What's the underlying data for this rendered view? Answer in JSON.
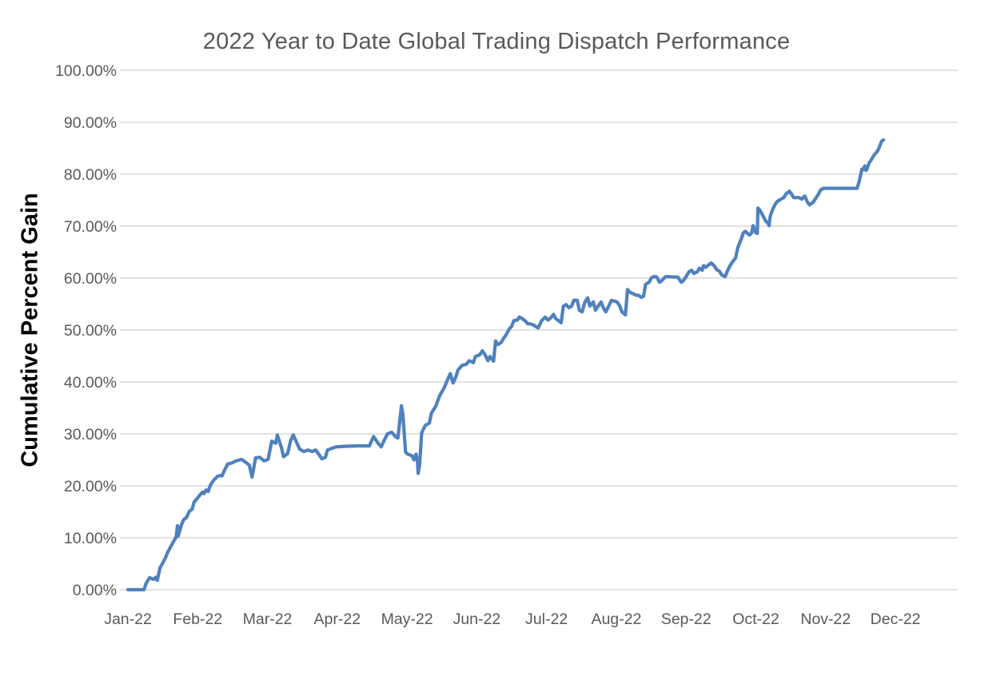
{
  "colors": {
    "line": "#4F81BD",
    "grid": "#D9D9D9",
    "tick_text": "#595959",
    "title_text": "#595959",
    "axis_title_text": "#000000"
  },
  "chart_data": {
    "type": "line",
    "title": "2022 Year to Date Global Trading Dispatch Performance",
    "ylabel": "Cumulative Percent Gain",
    "xlabel": "",
    "legend": "none",
    "grid": "horizontal",
    "ylim": [
      0,
      100
    ],
    "y_ticks": [
      "0.00%",
      "10.00%",
      "20.00%",
      "30.00%",
      "40.00%",
      "50.00%",
      "60.00%",
      "70.00%",
      "80.00%",
      "90.00%",
      "100.00%"
    ],
    "x_tick_labels": [
      "Jan-22",
      "Feb-22",
      "Mar-22",
      "Apr-22",
      "May-22",
      "Jun-22",
      "Jul-22",
      "Aug-22",
      "Sep-22",
      "Oct-22",
      "Nov-22",
      "Dec-22"
    ],
    "x_axis_unit": "months since Jan 2022 (fractional = day of month)",
    "series": [
      {
        "name": "Cumulative Percent Gain",
        "points": [
          [
            0.0,
            0.0
          ],
          [
            0.23,
            0.0
          ],
          [
            0.26,
            1.2
          ],
          [
            0.31,
            2.3
          ],
          [
            0.37,
            2.0
          ],
          [
            0.4,
            2.4
          ],
          [
            0.42,
            1.8
          ],
          [
            0.46,
            4.2
          ],
          [
            0.49,
            4.9
          ],
          [
            0.54,
            6.2
          ],
          [
            0.57,
            7.2
          ],
          [
            0.61,
            8.2
          ],
          [
            0.65,
            9.2
          ],
          [
            0.69,
            10.1
          ],
          [
            0.71,
            12.3
          ],
          [
            0.72,
            10.3
          ],
          [
            0.77,
            12.6
          ],
          [
            0.8,
            13.5
          ],
          [
            0.84,
            13.9
          ],
          [
            0.88,
            15.1
          ],
          [
            0.92,
            15.5
          ],
          [
            0.95,
            16.9
          ],
          [
            1.0,
            17.7
          ],
          [
            1.03,
            18.2
          ],
          [
            1.07,
            18.8
          ],
          [
            1.09,
            18.5
          ],
          [
            1.12,
            19.2
          ],
          [
            1.15,
            18.9
          ],
          [
            1.18,
            20.1
          ],
          [
            1.23,
            21.1
          ],
          [
            1.26,
            21.5
          ],
          [
            1.28,
            21.8
          ],
          [
            1.32,
            22.0
          ],
          [
            1.35,
            21.9
          ],
          [
            1.37,
            22.6
          ],
          [
            1.43,
            24.2
          ],
          [
            1.49,
            24.4
          ],
          [
            1.55,
            24.8
          ],
          [
            1.63,
            25.1
          ],
          [
            1.68,
            24.6
          ],
          [
            1.74,
            24.0
          ],
          [
            1.78,
            21.7
          ],
          [
            1.83,
            25.4
          ],
          [
            1.89,
            25.5
          ],
          [
            1.95,
            24.8
          ],
          [
            2.01,
            25.1
          ],
          [
            2.06,
            28.6
          ],
          [
            2.12,
            28.2
          ],
          [
            2.14,
            29.8
          ],
          [
            2.2,
            27.4
          ],
          [
            2.23,
            25.6
          ],
          [
            2.29,
            26.2
          ],
          [
            2.33,
            28.6
          ],
          [
            2.37,
            29.8
          ],
          [
            2.41,
            28.6
          ],
          [
            2.46,
            27.1
          ],
          [
            2.52,
            26.6
          ],
          [
            2.58,
            26.9
          ],
          [
            2.64,
            26.6
          ],
          [
            2.69,
            26.9
          ],
          [
            2.75,
            25.8
          ],
          [
            2.78,
            25.2
          ],
          [
            2.83,
            25.5
          ],
          [
            2.86,
            26.9
          ],
          [
            2.92,
            27.2
          ],
          [
            2.98,
            27.5
          ],
          [
            3.09,
            27.6
          ],
          [
            3.29,
            27.7
          ],
          [
            3.46,
            27.7
          ],
          [
            3.52,
            29.5
          ],
          [
            3.58,
            28.3
          ],
          [
            3.63,
            27.5
          ],
          [
            3.67,
            28.7
          ],
          [
            3.72,
            30.0
          ],
          [
            3.78,
            30.3
          ],
          [
            3.84,
            29.4
          ],
          [
            3.87,
            29.2
          ],
          [
            3.92,
            35.4
          ],
          [
            3.94,
            33.9
          ],
          [
            3.98,
            26.5
          ],
          [
            4.01,
            26.1
          ],
          [
            4.07,
            25.8
          ],
          [
            4.1,
            25.0
          ],
          [
            4.13,
            26.1
          ],
          [
            4.15,
            24.6
          ],
          [
            4.16,
            22.4
          ],
          [
            4.18,
            24.0
          ],
          [
            4.21,
            30.2
          ],
          [
            4.26,
            31.6
          ],
          [
            4.32,
            32.1
          ],
          [
            4.35,
            34.0
          ],
          [
            4.41,
            35.3
          ],
          [
            4.47,
            37.4
          ],
          [
            4.53,
            38.8
          ],
          [
            4.58,
            40.4
          ],
          [
            4.62,
            41.6
          ],
          [
            4.66,
            39.8
          ],
          [
            4.7,
            41.0
          ],
          [
            4.73,
            42.3
          ],
          [
            4.79,
            43.2
          ],
          [
            4.85,
            43.4
          ],
          [
            4.89,
            44.1
          ],
          [
            4.95,
            43.7
          ],
          [
            4.98,
            44.9
          ],
          [
            5.04,
            45.2
          ],
          [
            5.08,
            46.0
          ],
          [
            5.12,
            45.2
          ],
          [
            5.16,
            44.1
          ],
          [
            5.19,
            44.9
          ],
          [
            5.24,
            44.0
          ],
          [
            5.27,
            47.9
          ],
          [
            5.3,
            47.2
          ],
          [
            5.35,
            47.6
          ],
          [
            5.38,
            48.3
          ],
          [
            5.42,
            49.1
          ],
          [
            5.47,
            50.3
          ],
          [
            5.5,
            50.7
          ],
          [
            5.53,
            51.8
          ],
          [
            5.58,
            51.9
          ],
          [
            5.61,
            52.5
          ],
          [
            5.65,
            52.2
          ],
          [
            5.69,
            51.8
          ],
          [
            5.73,
            51.2
          ],
          [
            5.76,
            51.2
          ],
          [
            5.81,
            51.0
          ],
          [
            5.84,
            50.7
          ],
          [
            5.88,
            50.4
          ],
          [
            5.93,
            51.8
          ],
          [
            5.98,
            52.5
          ],
          [
            6.02,
            51.9
          ],
          [
            6.05,
            52.2
          ],
          [
            6.1,
            53.0
          ],
          [
            6.13,
            52.2
          ],
          [
            6.16,
            51.9
          ],
          [
            6.21,
            51.4
          ],
          [
            6.24,
            54.6
          ],
          [
            6.28,
            54.9
          ],
          [
            6.32,
            54.3
          ],
          [
            6.36,
            54.6
          ],
          [
            6.39,
            55.7
          ],
          [
            6.44,
            55.7
          ],
          [
            6.47,
            53.8
          ],
          [
            6.51,
            53.5
          ],
          [
            6.55,
            55.4
          ],
          [
            6.59,
            56.2
          ],
          [
            6.62,
            54.6
          ],
          [
            6.67,
            55.4
          ],
          [
            6.7,
            53.8
          ],
          [
            6.74,
            54.6
          ],
          [
            6.78,
            55.4
          ],
          [
            6.82,
            54.1
          ],
          [
            6.85,
            53.5
          ],
          [
            6.9,
            54.9
          ],
          [
            6.93,
            55.7
          ],
          [
            7.01,
            55.4
          ],
          [
            7.05,
            54.6
          ],
          [
            7.08,
            53.5
          ],
          [
            7.13,
            52.9
          ],
          [
            7.16,
            57.8
          ],
          [
            7.19,
            57.3
          ],
          [
            7.24,
            57.0
          ],
          [
            7.28,
            56.7
          ],
          [
            7.31,
            56.7
          ],
          [
            7.36,
            56.3
          ],
          [
            7.39,
            56.5
          ],
          [
            7.42,
            58.8
          ],
          [
            7.47,
            59.2
          ],
          [
            7.5,
            60.0
          ],
          [
            7.54,
            60.3
          ],
          [
            7.58,
            60.2
          ],
          [
            7.62,
            59.2
          ],
          [
            7.65,
            59.5
          ],
          [
            7.7,
            60.2
          ],
          [
            7.73,
            60.3
          ],
          [
            7.81,
            60.2
          ],
          [
            7.88,
            60.2
          ],
          [
            7.93,
            59.2
          ],
          [
            7.96,
            59.5
          ],
          [
            8.0,
            60.3
          ],
          [
            8.04,
            61.2
          ],
          [
            8.08,
            61.5
          ],
          [
            8.11,
            60.9
          ],
          [
            8.16,
            61.2
          ],
          [
            8.19,
            61.9
          ],
          [
            8.23,
            61.5
          ],
          [
            8.25,
            62.4
          ],
          [
            8.28,
            62.1
          ],
          [
            8.33,
            62.6
          ],
          [
            8.36,
            62.9
          ],
          [
            8.4,
            62.4
          ],
          [
            8.44,
            61.6
          ],
          [
            8.48,
            61.3
          ],
          [
            8.51,
            60.6
          ],
          [
            8.56,
            60.3
          ],
          [
            8.59,
            61.3
          ],
          [
            8.63,
            62.4
          ],
          [
            8.67,
            63.2
          ],
          [
            8.71,
            63.9
          ],
          [
            8.74,
            65.8
          ],
          [
            8.79,
            67.5
          ],
          [
            8.82,
            68.7
          ],
          [
            8.85,
            69.0
          ],
          [
            8.88,
            68.6
          ],
          [
            8.91,
            68.3
          ],
          [
            8.94,
            68.7
          ],
          [
            8.96,
            70.1
          ],
          [
            9.0,
            68.7
          ],
          [
            9.02,
            68.6
          ],
          [
            9.03,
            73.5
          ],
          [
            9.05,
            73.2
          ],
          [
            9.08,
            72.5
          ],
          [
            9.11,
            71.8
          ],
          [
            9.14,
            71.0
          ],
          [
            9.17,
            70.6
          ],
          [
            9.19,
            70.1
          ],
          [
            9.2,
            71.6
          ],
          [
            9.22,
            72.5
          ],
          [
            9.25,
            73.5
          ],
          [
            9.28,
            74.3
          ],
          [
            9.31,
            74.8
          ],
          [
            9.36,
            75.2
          ],
          [
            9.4,
            75.5
          ],
          [
            9.43,
            76.2
          ],
          [
            9.48,
            76.7
          ],
          [
            9.51,
            76.2
          ],
          [
            9.54,
            75.5
          ],
          [
            9.59,
            75.5
          ],
          [
            9.62,
            75.5
          ],
          [
            9.66,
            75.2
          ],
          [
            9.7,
            75.8
          ],
          [
            9.74,
            74.6
          ],
          [
            9.77,
            74.1
          ],
          [
            9.82,
            74.6
          ],
          [
            9.85,
            75.2
          ],
          [
            9.89,
            76.0
          ],
          [
            9.93,
            77.0
          ],
          [
            9.97,
            77.3
          ],
          [
            10.45,
            77.3
          ],
          [
            10.48,
            78.6
          ],
          [
            10.52,
            81.0
          ],
          [
            10.54,
            80.9
          ],
          [
            10.56,
            81.6
          ],
          [
            10.58,
            80.7
          ],
          [
            10.6,
            81.3
          ],
          [
            10.62,
            82.1
          ],
          [
            10.66,
            82.9
          ],
          [
            10.69,
            83.6
          ],
          [
            10.74,
            84.4
          ],
          [
            10.77,
            85.2
          ],
          [
            10.8,
            86.3
          ],
          [
            10.83,
            86.6
          ]
        ]
      }
    ]
  }
}
